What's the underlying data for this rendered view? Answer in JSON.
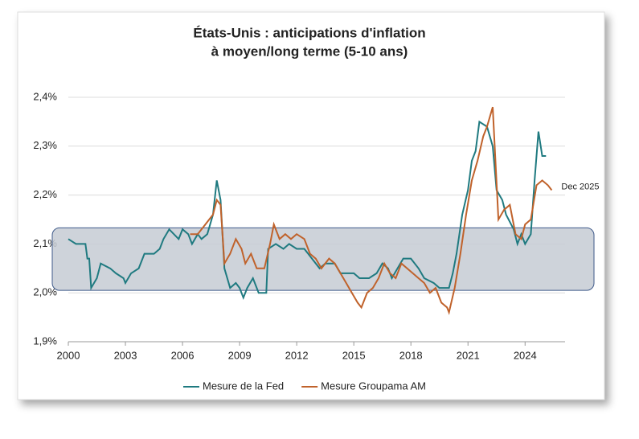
{
  "chart_data": {
    "type": "line",
    "title": [
      "États-Unis : anticipations d'inflation",
      "à moyen/long terme (5-10 ans)"
    ],
    "xlim": [
      2000,
      2026.1
    ],
    "xticks": [
      2000,
      2003,
      2006,
      2009,
      2012,
      2015,
      2018,
      2021,
      2024
    ],
    "ylim": [
      1.9,
      2.4
    ],
    "yticks": [
      {
        "value": 1.9,
        "label": "1,9%"
      },
      {
        "value": 2.0,
        "label": "2,0%"
      },
      {
        "value": 2.1,
        "label": "2,1%"
      },
      {
        "value": 2.2,
        "label": "2,2%"
      },
      {
        "value": 2.3,
        "label": "2,3%"
      },
      {
        "value": 2.4,
        "label": "2,4%"
      }
    ],
    "grid": true,
    "band": [
      2.005,
      2.133
    ],
    "band_color": "#c5cbd3",
    "annotation": "Dec 2025",
    "legend": "bottom",
    "series": [
      {
        "name": "Mesure de la Fed",
        "color": "#1f7a80",
        "x": [
          2000,
          2000.4,
          2000.9,
          2001.0,
          2001.1,
          2001.2,
          2001.5,
          2001.7,
          2002.2,
          2002.5,
          2002.9,
          2003.0,
          2003.3,
          2003.7,
          2004.0,
          2004.5,
          2004.8,
          2005.0,
          2005.3,
          2005.8,
          2006.0,
          2006.3,
          2006.5,
          2006.8,
          2007.0,
          2007.3,
          2007.6,
          2007.8,
          2008.0,
          2008.2,
          2008.5,
          2008.8,
          2009.0,
          2009.2,
          2009.4,
          2009.7,
          2010.0,
          2010.4,
          2010.5,
          2010.9,
          2011.3,
          2011.6,
          2012.0,
          2012.4,
          2012.8,
          2013.2,
          2013.5,
          2014.0,
          2014.3,
          2015.0,
          2015.3,
          2015.8,
          2016.2,
          2016.5,
          2016.8,
          2017.0,
          2017.3,
          2017.6,
          2018.0,
          2018.4,
          2018.7,
          2019.2,
          2019.5,
          2020.0,
          2020.2,
          2020.4,
          2020.7,
          2021.0,
          2021.2,
          2021.4,
          2021.6,
          2022.0,
          2022.3,
          2022.5,
          2022.8,
          2023.0,
          2023.4,
          2023.6,
          2023.8,
          2024.0,
          2024.3,
          2024.5,
          2024.7,
          2024.9,
          2025.1
        ],
        "values": [
          2.11,
          2.1,
          2.1,
          2.07,
          2.07,
          2.01,
          2.03,
          2.06,
          2.05,
          2.04,
          2.03,
          2.02,
          2.04,
          2.05,
          2.08,
          2.08,
          2.09,
          2.11,
          2.13,
          2.11,
          2.13,
          2.12,
          2.1,
          2.12,
          2.11,
          2.12,
          2.16,
          2.23,
          2.19,
          2.05,
          2.01,
          2.02,
          2.01,
          1.99,
          2.01,
          2.03,
          2.0,
          2.0,
          2.09,
          2.1,
          2.09,
          2.1,
          2.09,
          2.09,
          2.07,
          2.05,
          2.06,
          2.06,
          2.04,
          2.04,
          2.03,
          2.03,
          2.04,
          2.06,
          2.05,
          2.03,
          2.05,
          2.07,
          2.07,
          2.05,
          2.03,
          2.02,
          2.01,
          2.01,
          2.04,
          2.08,
          2.16,
          2.21,
          2.27,
          2.29,
          2.35,
          2.34,
          2.3,
          2.21,
          2.19,
          2.16,
          2.13,
          2.1,
          2.12,
          2.1,
          2.12,
          2.23,
          2.33,
          2.28,
          2.28
        ]
      },
      {
        "name": "Mesure Groupama AM",
        "color": "#c0622b",
        "x": [
          2006.4,
          2006.8,
          2007.2,
          2007.6,
          2007.8,
          2008.0,
          2008.2,
          2008.5,
          2008.8,
          2009.1,
          2009.3,
          2009.6,
          2009.9,
          2010.3,
          2010.6,
          2010.8,
          2011.1,
          2011.4,
          2011.7,
          2012.0,
          2012.4,
          2012.7,
          2013.0,
          2013.3,
          2013.7,
          2014.0,
          2014.3,
          2014.6,
          2014.9,
          2015.2,
          2015.4,
          2015.7,
          2016.0,
          2016.3,
          2016.6,
          2016.9,
          2017.2,
          2017.5,
          2017.8,
          2018.1,
          2018.4,
          2018.7,
          2019.0,
          2019.3,
          2019.6,
          2019.9,
          2020.0,
          2020.3,
          2020.6,
          2020.9,
          2021.2,
          2021.5,
          2021.8,
          2022.0,
          2022.3,
          2022.6,
          2022.9,
          2023.2,
          2023.5,
          2023.8,
          2024.0,
          2024.3,
          2024.6,
          2024.9,
          2025.2,
          2025.4
        ],
        "values": [
          2.12,
          2.12,
          2.14,
          2.16,
          2.19,
          2.18,
          2.06,
          2.08,
          2.11,
          2.09,
          2.06,
          2.08,
          2.05,
          2.05,
          2.1,
          2.14,
          2.11,
          2.12,
          2.11,
          2.12,
          2.11,
          2.08,
          2.07,
          2.05,
          2.07,
          2.06,
          2.04,
          2.02,
          2.0,
          1.98,
          1.97,
          2.0,
          2.01,
          2.03,
          2.06,
          2.04,
          2.03,
          2.06,
          2.05,
          2.04,
          2.03,
          2.02,
          2.0,
          2.01,
          1.98,
          1.97,
          1.96,
          2.01,
          2.08,
          2.16,
          2.23,
          2.27,
          2.32,
          2.34,
          2.38,
          2.15,
          2.17,
          2.18,
          2.12,
          2.11,
          2.14,
          2.15,
          2.22,
          2.23,
          2.22,
          2.21
        ]
      }
    ]
  }
}
